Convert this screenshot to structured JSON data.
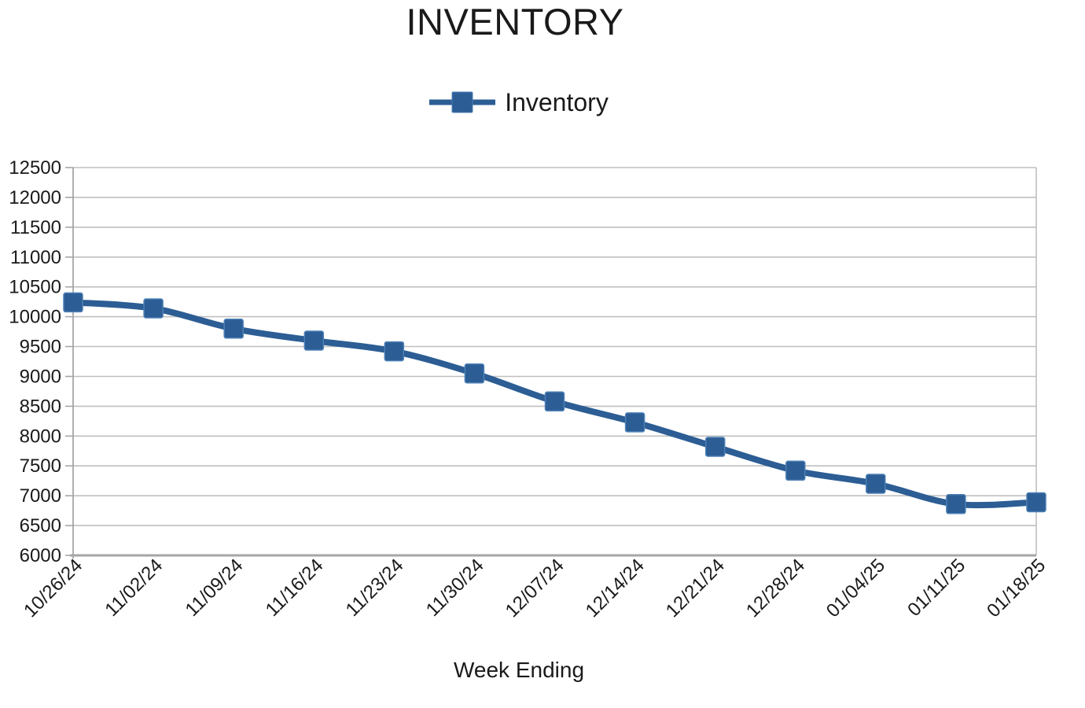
{
  "chart_data": {
    "type": "line",
    "title": "INVENTORY",
    "xlabel": "Week Ending",
    "ylabel": "",
    "legend": {
      "position": "top",
      "entries": [
        "Inventory"
      ]
    },
    "categories": [
      "10/26/24",
      "11/02/24",
      "11/09/24",
      "11/16/24",
      "11/23/24",
      "11/30/24",
      "12/07/24",
      "12/14/24",
      "12/21/24",
      "12/28/24",
      "01/04/25",
      "01/11/25",
      "01/18/25"
    ],
    "series": [
      {
        "name": "Inventory",
        "values": [
          10240,
          10140,
          9800,
          9600,
          9420,
          9050,
          8580,
          8230,
          7820,
          7420,
          7200,
          6860,
          6890
        ],
        "color": "#2c5d94",
        "marker": "square"
      }
    ],
    "ylim": [
      6000,
      12500
    ],
    "ytick_step": 500,
    "yticks": [
      6000,
      6500,
      7000,
      7500,
      8000,
      8500,
      9000,
      9500,
      10000,
      10500,
      11000,
      11500,
      12000,
      12500
    ],
    "grid": true,
    "smoothed_line": true,
    "colors": {
      "series_blue": "#2c5d94",
      "marker_border": "#4c80b6",
      "gridline": "#bfbfbf",
      "axis": "#a6a6a6",
      "text": "#1a1a1a"
    }
  }
}
